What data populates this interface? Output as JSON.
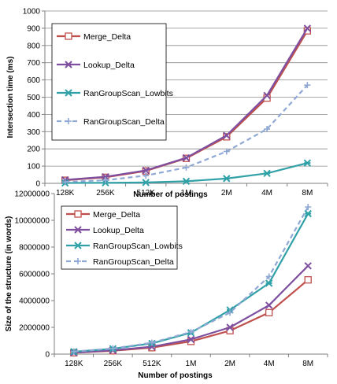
{
  "chart_data": [
    {
      "type": "line",
      "categories": [
        "128K",
        "256K",
        "512K",
        "1M",
        "2M",
        "4M",
        "8M"
      ],
      "xlabel": "Number of postings",
      "ylabel": "Intersection time (ms)",
      "ylim": [
        0,
        1000
      ],
      "yticks": [
        0,
        100,
        200,
        300,
        400,
        500,
        600,
        700,
        800,
        900,
        1000
      ],
      "ytick_labels": [
        "0",
        "100",
        "200",
        "300",
        "400",
        "500",
        "600",
        "700",
        "800",
        "900",
        "1000"
      ],
      "grid": true,
      "legend_position": "top-left",
      "series": [
        {
          "name": "Merge_Delta",
          "color": "#c0504d",
          "marker": "square-open",
          "values": [
            18,
            35,
            72,
            145,
            270,
            495,
            885
          ]
        },
        {
          "name": "Lookup_Delta",
          "color": "#7f4f9f",
          "marker": "x-cross",
          "values": [
            20,
            38,
            75,
            148,
            278,
            510,
            900
          ]
        },
        {
          "name": "RanGroupScan_Lowbits",
          "color": "#31a1a8",
          "marker": "asterisk",
          "values": [
            2,
            3,
            5,
            12,
            28,
            58,
            118
          ]
        },
        {
          "name": "RanGroupScan_Delta",
          "color": "#8fa8d4",
          "marker": "plus",
          "dashed": true,
          "values": [
            8,
            18,
            45,
            92,
            185,
            315,
            570
          ]
        }
      ]
    },
    {
      "type": "line",
      "categories": [
        "128K",
        "256K",
        "512K",
        "1M",
        "2M",
        "4M",
        "8M"
      ],
      "xlabel": "Number of postings",
      "ylabel": "Size of the structure (in words)",
      "ylim": [
        0,
        12000000
      ],
      "yticks": [
        0,
        2000000,
        4000000,
        6000000,
        8000000,
        10000000,
        12000000
      ],
      "ytick_labels": [
        "0",
        "2000000",
        "4000000",
        "6000000",
        "8000000",
        "10000000",
        "12000000"
      ],
      "grid": false,
      "legend_position": "top-left",
      "series": [
        {
          "name": "Merge_Delta",
          "color": "#c0504d",
          "marker": "square-open",
          "values": [
            100000,
            250000,
            480000,
            950000,
            1750000,
            3100000,
            5550000
          ]
        },
        {
          "name": "Lookup_Delta",
          "color": "#7f4f9f",
          "marker": "x-cross",
          "values": [
            110000,
            280000,
            550000,
            1100000,
            2000000,
            3650000,
            6600000
          ]
        },
        {
          "name": "RanGroupScan_Lowbits",
          "color": "#31a1a8",
          "marker": "asterisk",
          "values": [
            180000,
            400000,
            800000,
            1600000,
            3300000,
            5300000,
            10500000
          ]
        },
        {
          "name": "RanGroupScan_Delta",
          "color": "#8fa8d4",
          "marker": "plus",
          "dashed": true,
          "values": [
            190000,
            420000,
            850000,
            1650000,
            3100000,
            5800000,
            11000000
          ]
        }
      ]
    }
  ]
}
